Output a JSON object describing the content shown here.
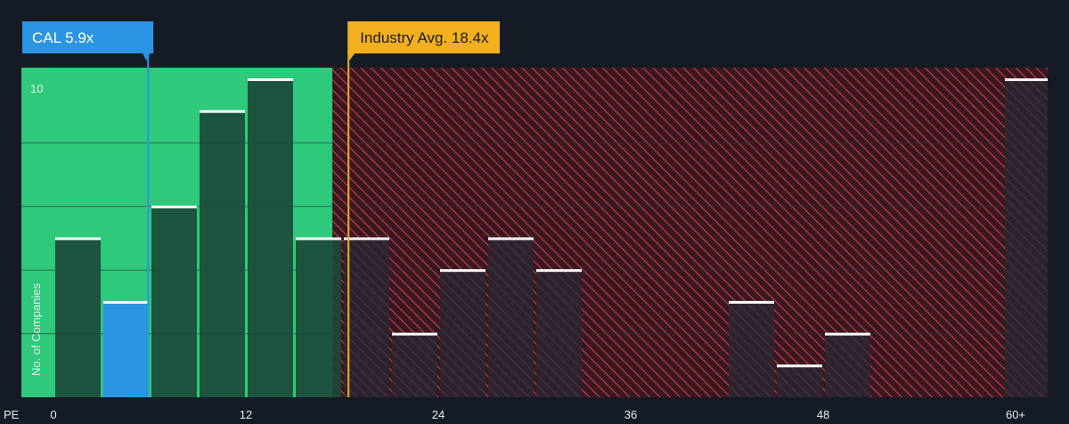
{
  "chart_data": {
    "type": "bar",
    "x_axis_title": "PE",
    "ylabel": "No. of Companies",
    "x_ticks": [
      {
        "value": 0,
        "label": "0"
      },
      {
        "value": 12,
        "label": "12"
      },
      {
        "value": 24,
        "label": "24"
      },
      {
        "value": 36,
        "label": "36"
      },
      {
        "value": 48,
        "label": "48"
      },
      {
        "value": 60,
        "label": "60+"
      }
    ],
    "y_ticks": [
      {
        "value": 10,
        "label": "10"
      }
    ],
    "xlim": [
      -2,
      62
    ],
    "ylim": [
      0,
      10
    ],
    "bin_width": 3,
    "bins": [
      {
        "start": 0,
        "count": 5
      },
      {
        "start": 3,
        "count": 3
      },
      {
        "start": 6,
        "count": 6
      },
      {
        "start": 9,
        "count": 9
      },
      {
        "start": 12,
        "count": 10
      },
      {
        "start": 15,
        "count": 5
      },
      {
        "start": 18,
        "count": 5
      },
      {
        "start": 21,
        "count": 2
      },
      {
        "start": 24,
        "count": 4
      },
      {
        "start": 27,
        "count": 5
      },
      {
        "start": 30,
        "count": 4
      },
      {
        "start": 33,
        "count": 0
      },
      {
        "start": 36,
        "count": 0
      },
      {
        "start": 39,
        "count": 0
      },
      {
        "start": 42,
        "count": 3
      },
      {
        "start": 45,
        "count": 1
      },
      {
        "start": 48,
        "count": 2
      },
      {
        "start": 51,
        "count": 0
      },
      {
        "start": 54,
        "count": 0
      },
      {
        "start": 57,
        "count": 0
      },
      {
        "start": 60,
        "count": 10
      }
    ],
    "highlight_bin_start": 3,
    "company": {
      "label": "CAL 5.9x",
      "value": 5.9
    },
    "industry_avg": {
      "label": "Industry Avg. 18.4x",
      "value": 18.4
    },
    "fair_zone_end": 17.4,
    "grid": true
  },
  "colors": {
    "background": "#151b24",
    "fair_zone": "#2ec97a",
    "over_zone": "#5a1f2a",
    "hatch": "#c8404f",
    "bar": "#1b4a3a",
    "bar_over": "#252a33",
    "highlight_bar": "#2b94e3",
    "bar_cap": "#ffffff",
    "company_line": "#2b94e3",
    "industry_line": "#f2b01e",
    "grid": "#2a313c"
  }
}
